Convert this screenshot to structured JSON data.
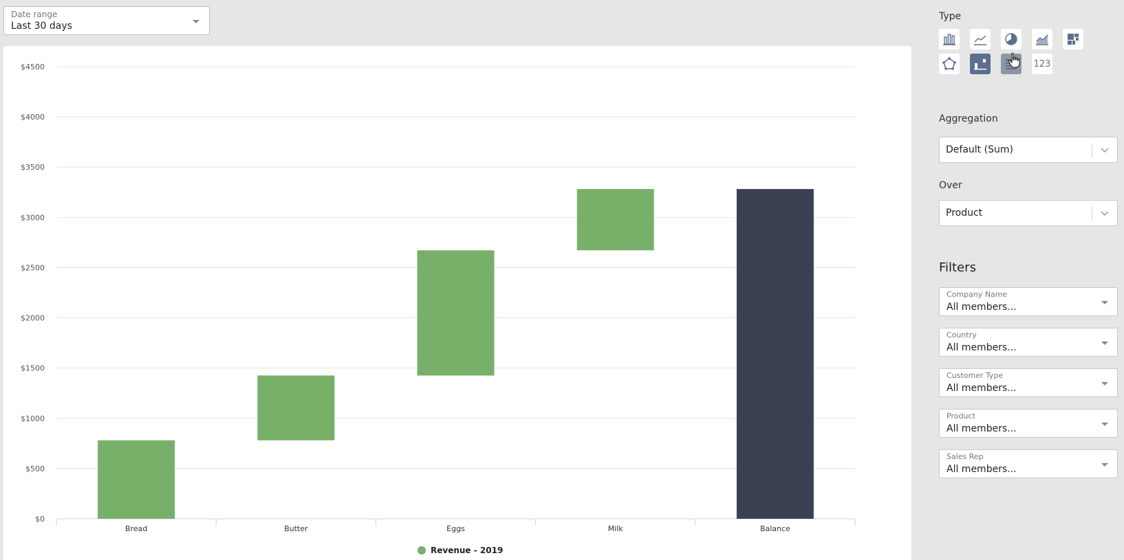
{
  "date_range": {
    "label": "Date range",
    "value": "Last 30 days"
  },
  "chart_data": {
    "type": "waterfall",
    "categories": [
      "Bread",
      "Butter",
      "Eggs",
      "Milk",
      "Balance"
    ],
    "values": [
      781,
      645,
      1246,
      610,
      3282
    ],
    "is_total": [
      false,
      false,
      false,
      false,
      true
    ],
    "ylim": [
      0,
      4500
    ],
    "yticks": [
      "$0",
      "$500",
      "$1000",
      "$1500",
      "$2000",
      "$2500",
      "$3000",
      "$3500",
      "$4000",
      "$4500"
    ],
    "grid": true,
    "colors": {
      "increase": "#78b069",
      "total": "#3b4152"
    },
    "legend": {
      "position": "bottom",
      "entries": [
        "Revenue - 2019"
      ]
    }
  },
  "sidebar": {
    "type_label": "Type",
    "types": [
      {
        "icon": "bar-chart-icon"
      },
      {
        "icon": "line-chart-icon"
      },
      {
        "icon": "pie-chart-icon"
      },
      {
        "icon": "area-chart-icon"
      },
      {
        "icon": "treemap-icon"
      },
      {
        "icon": "radar-chart-icon"
      },
      {
        "icon": "waterfall-chart-icon",
        "selected": true
      },
      {
        "icon": "table-icon",
        "hover": true
      },
      {
        "icon": "number-icon",
        "text": "123"
      }
    ],
    "aggregation_label": "Aggregation",
    "aggregation_value": "Default (Sum)",
    "over_label": "Over",
    "over_value": "Product",
    "filters_title": "Filters",
    "filters": [
      {
        "label": "Company Name",
        "value": "All members..."
      },
      {
        "label": "Country",
        "value": "All members..."
      },
      {
        "label": "Customer Type",
        "value": "All members..."
      },
      {
        "label": "Product",
        "value": "All members..."
      },
      {
        "label": "Sales Rep",
        "value": "All members..."
      }
    ]
  }
}
